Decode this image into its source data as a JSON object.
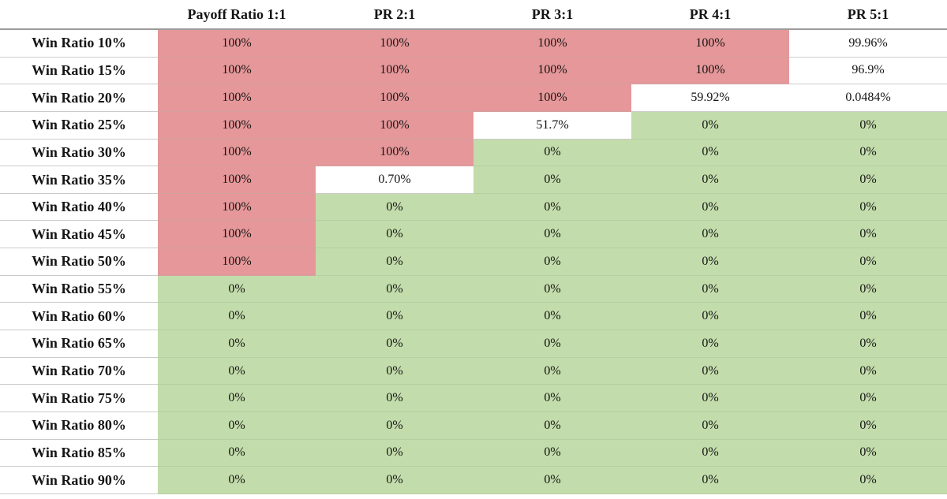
{
  "table": {
    "header": {
      "corner": "",
      "columns": [
        "Payoff Ratio 1:1",
        "PR 2:1",
        "PR 3:1",
        "PR 4:1",
        "PR 5:1"
      ]
    },
    "rows": [
      {
        "label": "Win Ratio 10%",
        "cells": [
          {
            "value": "100%",
            "state": "risk"
          },
          {
            "value": "100%",
            "state": "risk"
          },
          {
            "value": "100%",
            "state": "risk"
          },
          {
            "value": "100%",
            "state": "risk"
          },
          {
            "value": "99.96%",
            "state": "neutral"
          }
        ]
      },
      {
        "label": "Win Ratio 15%",
        "cells": [
          {
            "value": "100%",
            "state": "risk"
          },
          {
            "value": "100%",
            "state": "risk"
          },
          {
            "value": "100%",
            "state": "risk"
          },
          {
            "value": "100%",
            "state": "risk"
          },
          {
            "value": "96.9%",
            "state": "neutral"
          }
        ]
      },
      {
        "label": "Win Ratio 20%",
        "cells": [
          {
            "value": "100%",
            "state": "risk"
          },
          {
            "value": "100%",
            "state": "risk"
          },
          {
            "value": "100%",
            "state": "risk"
          },
          {
            "value": "59.92%",
            "state": "neutral"
          },
          {
            "value": "0.0484%",
            "state": "neutral"
          }
        ]
      },
      {
        "label": "Win Ratio 25%",
        "cells": [
          {
            "value": "100%",
            "state": "risk"
          },
          {
            "value": "100%",
            "state": "risk"
          },
          {
            "value": "51.7%",
            "state": "neutral"
          },
          {
            "value": "0%",
            "state": "safe"
          },
          {
            "value": "0%",
            "state": "safe"
          }
        ]
      },
      {
        "label": "Win Ratio 30%",
        "cells": [
          {
            "value": "100%",
            "state": "risk"
          },
          {
            "value": "100%",
            "state": "risk"
          },
          {
            "value": "0%",
            "state": "safe"
          },
          {
            "value": "0%",
            "state": "safe"
          },
          {
            "value": "0%",
            "state": "safe"
          }
        ]
      },
      {
        "label": "Win Ratio 35%",
        "cells": [
          {
            "value": "100%",
            "state": "risk"
          },
          {
            "value": "0.70%",
            "state": "neutral"
          },
          {
            "value": "0%",
            "state": "safe"
          },
          {
            "value": "0%",
            "state": "safe"
          },
          {
            "value": "0%",
            "state": "safe"
          }
        ]
      },
      {
        "label": "Win Ratio 40%",
        "cells": [
          {
            "value": "100%",
            "state": "risk"
          },
          {
            "value": "0%",
            "state": "safe"
          },
          {
            "value": "0%",
            "state": "safe"
          },
          {
            "value": "0%",
            "state": "safe"
          },
          {
            "value": "0%",
            "state": "safe"
          }
        ]
      },
      {
        "label": "Win Ratio 45%",
        "cells": [
          {
            "value": "100%",
            "state": "risk"
          },
          {
            "value": "0%",
            "state": "safe"
          },
          {
            "value": "0%",
            "state": "safe"
          },
          {
            "value": "0%",
            "state": "safe"
          },
          {
            "value": "0%",
            "state": "safe"
          }
        ]
      },
      {
        "label": "Win Ratio 50%",
        "cells": [
          {
            "value": "100%",
            "state": "risk"
          },
          {
            "value": "0%",
            "state": "safe"
          },
          {
            "value": "0%",
            "state": "safe"
          },
          {
            "value": "0%",
            "state": "safe"
          },
          {
            "value": "0%",
            "state": "safe"
          }
        ]
      },
      {
        "label": "Win Ratio 55%",
        "cells": [
          {
            "value": "0%",
            "state": "safe"
          },
          {
            "value": "0%",
            "state": "safe"
          },
          {
            "value": "0%",
            "state": "safe"
          },
          {
            "value": "0%",
            "state": "safe"
          },
          {
            "value": "0%",
            "state": "safe"
          }
        ]
      },
      {
        "label": "Win Ratio 60%",
        "cells": [
          {
            "value": "0%",
            "state": "safe"
          },
          {
            "value": "0%",
            "state": "safe"
          },
          {
            "value": "0%",
            "state": "safe"
          },
          {
            "value": "0%",
            "state": "safe"
          },
          {
            "value": "0%",
            "state": "safe"
          }
        ]
      },
      {
        "label": "Win Ratio 65%",
        "cells": [
          {
            "value": "0%",
            "state": "safe"
          },
          {
            "value": "0%",
            "state": "safe"
          },
          {
            "value": "0%",
            "state": "safe"
          },
          {
            "value": "0%",
            "state": "safe"
          },
          {
            "value": "0%",
            "state": "safe"
          }
        ]
      },
      {
        "label": "Win Ratio 70%",
        "cells": [
          {
            "value": "0%",
            "state": "safe"
          },
          {
            "value": "0%",
            "state": "safe"
          },
          {
            "value": "0%",
            "state": "safe"
          },
          {
            "value": "0%",
            "state": "safe"
          },
          {
            "value": "0%",
            "state": "safe"
          }
        ]
      },
      {
        "label": "Win Ratio 75%",
        "cells": [
          {
            "value": "0%",
            "state": "safe"
          },
          {
            "value": "0%",
            "state": "safe"
          },
          {
            "value": "0%",
            "state": "safe"
          },
          {
            "value": "0%",
            "state": "safe"
          },
          {
            "value": "0%",
            "state": "safe"
          }
        ]
      },
      {
        "label": "Win Ratio 80%",
        "cells": [
          {
            "value": "0%",
            "state": "safe"
          },
          {
            "value": "0%",
            "state": "safe"
          },
          {
            "value": "0%",
            "state": "safe"
          },
          {
            "value": "0%",
            "state": "safe"
          },
          {
            "value": "0%",
            "state": "safe"
          }
        ]
      },
      {
        "label": "Win Ratio 85%",
        "cells": [
          {
            "value": "0%",
            "state": "safe"
          },
          {
            "value": "0%",
            "state": "safe"
          },
          {
            "value": "0%",
            "state": "safe"
          },
          {
            "value": "0%",
            "state": "safe"
          },
          {
            "value": "0%",
            "state": "safe"
          }
        ]
      },
      {
        "label": "Win Ratio 90%",
        "cells": [
          {
            "value": "0%",
            "state": "safe"
          },
          {
            "value": "0%",
            "state": "safe"
          },
          {
            "value": "0%",
            "state": "safe"
          },
          {
            "value": "0%",
            "state": "safe"
          },
          {
            "value": "0%",
            "state": "safe"
          }
        ]
      }
    ]
  },
  "colors": {
    "risk": "#e69799",
    "safe": "#c3dcab",
    "neutral": "#ffffff"
  },
  "chart_data": {
    "type": "heatmap",
    "columns": [
      "Payoff Ratio 1:1",
      "PR 2:1",
      "PR 3:1",
      "PR 4:1",
      "PR 5:1"
    ],
    "rows": [
      "Win Ratio 10%",
      "Win Ratio 15%",
      "Win Ratio 20%",
      "Win Ratio 25%",
      "Win Ratio 30%",
      "Win Ratio 35%",
      "Win Ratio 40%",
      "Win Ratio 45%",
      "Win Ratio 50%",
      "Win Ratio 55%",
      "Win Ratio 60%",
      "Win Ratio 65%",
      "Win Ratio 70%",
      "Win Ratio 75%",
      "Win Ratio 80%",
      "Win Ratio 85%",
      "Win Ratio 90%"
    ],
    "values": [
      [
        100,
        100,
        100,
        100,
        99.96
      ],
      [
        100,
        100,
        100,
        100,
        96.9
      ],
      [
        100,
        100,
        100,
        59.92,
        0.0484
      ],
      [
        100,
        100,
        51.7,
        0,
        0
      ],
      [
        100,
        100,
        0,
        0,
        0
      ],
      [
        100,
        0.7,
        0,
        0,
        0
      ],
      [
        100,
        0,
        0,
        0,
        0
      ],
      [
        100,
        0,
        0,
        0,
        0
      ],
      [
        100,
        0,
        0,
        0,
        0
      ],
      [
        0,
        0,
        0,
        0,
        0
      ],
      [
        0,
        0,
        0,
        0,
        0
      ],
      [
        0,
        0,
        0,
        0,
        0
      ],
      [
        0,
        0,
        0,
        0,
        0
      ],
      [
        0,
        0,
        0,
        0,
        0
      ],
      [
        0,
        0,
        0,
        0,
        0
      ],
      [
        0,
        0,
        0,
        0,
        0
      ],
      [
        0,
        0,
        0,
        0,
        0
      ]
    ],
    "value_unit": "%",
    "cell_color_legend": {
      "risk": "value = 100% (salmon red)",
      "neutral": "0% < value < 100% (white)",
      "safe": "value = 0% (green)"
    },
    "legend_position": "none",
    "grid": true
  }
}
